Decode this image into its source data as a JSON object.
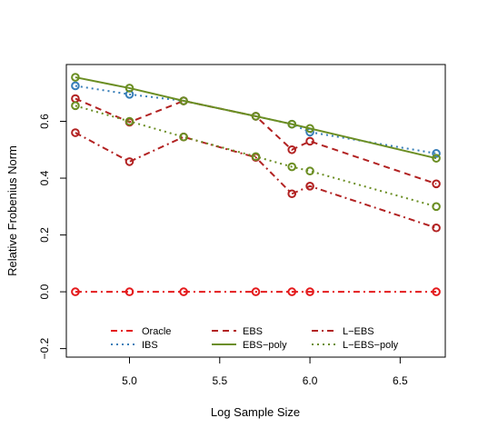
{
  "chart_data": {
    "type": "line",
    "xlabel": "Log Sample Size",
    "ylabel": "Relative Frobenius Norm",
    "xlim": [
      4.65,
      6.75
    ],
    "ylim": [
      -0.23,
      0.8
    ],
    "x_ticks": [
      5.0,
      5.5,
      6.0,
      6.5
    ],
    "x_tick_labels": [
      "5.0",
      "5.5",
      "6.0",
      "6.5"
    ],
    "y_ticks": [
      -0.2,
      0.0,
      0.2,
      0.4,
      0.6
    ],
    "y_tick_labels": [
      "−0.2",
      "0.0",
      "0.2",
      "0.4",
      "0.6"
    ],
    "grid": false,
    "legend_position": "bottom-center",
    "x": [
      4.7,
      5.0,
      5.3,
      5.7,
      5.9,
      6.0,
      6.7
    ],
    "series": [
      {
        "name": "Oracle",
        "color": "#e41a1c",
        "dash": "dashdot",
        "marker_color": "#e41a1c",
        "values": [
          0.0,
          0.0,
          0.0,
          0.0,
          0.0,
          0.0,
          0.0
        ]
      },
      {
        "name": "IBS",
        "color": "#377eb8",
        "dash": "dotted",
        "marker_color": "#377eb8",
        "values": [
          0.725,
          0.695,
          0.672,
          0.618,
          0.59,
          0.562,
          0.487
        ]
      },
      {
        "name": "EBS",
        "color": "#b22222",
        "dash": "dashed",
        "marker_color": "#b22222",
        "values": [
          0.68,
          0.597,
          0.672,
          0.618,
          0.5,
          0.53,
          0.38
        ]
      },
      {
        "name": "EBS−poly",
        "color": "#6b8e23",
        "dash": "solid",
        "marker_color": "#6b8e23",
        "values": [
          0.755,
          0.717,
          0.672,
          0.618,
          0.59,
          0.575,
          0.47
        ]
      },
      {
        "name": "L−EBS",
        "color": "#b22222",
        "dash": "dashdot",
        "marker_color": "#b22222",
        "values": [
          0.56,
          0.458,
          0.545,
          0.473,
          0.345,
          0.372,
          0.225
        ]
      },
      {
        "name": "L−EBS−poly",
        "color": "#6b8e23",
        "dash": "dotted",
        "marker_color": "#6b8e23",
        "values": [
          0.655,
          0.6,
          0.545,
          0.476,
          0.44,
          0.425,
          0.3
        ]
      }
    ]
  }
}
